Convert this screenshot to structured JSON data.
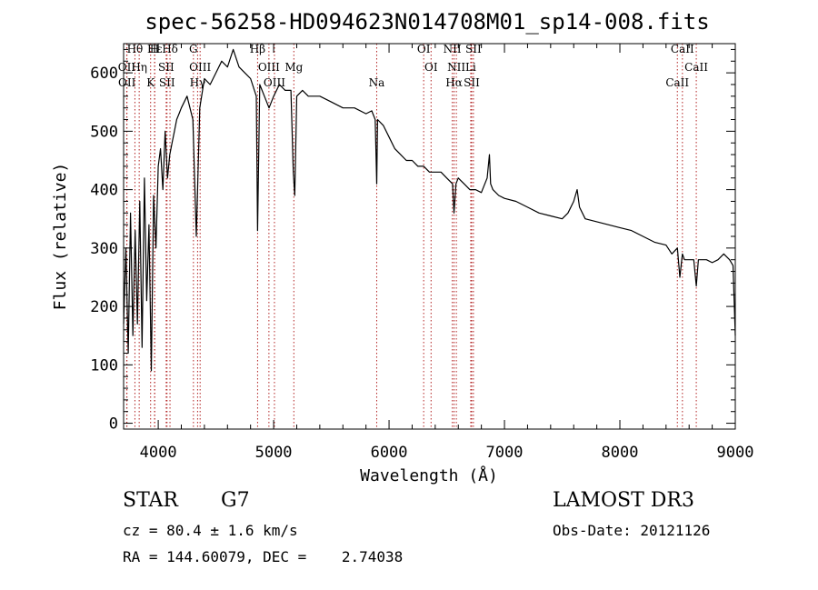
{
  "chart_data": {
    "type": "line",
    "title": "spec-56258-HD094623N014708M01_sp14-008.fits",
    "xlabel": "Wavelength (Å)",
    "ylabel": "Flux (relative)",
    "xlim": [
      3700,
      9000
    ],
    "ylim": [
      -10,
      650
    ],
    "xticks": [
      4000,
      5000,
      6000,
      7000,
      8000,
      9000
    ],
    "yticks": [
      0,
      100,
      200,
      300,
      400,
      500,
      600
    ],
    "grid": false,
    "series": [
      {
        "name": "flux",
        "x": [
          3700,
          3720,
          3740,
          3760,
          3780,
          3800,
          3820,
          3840,
          3860,
          3880,
          3900,
          3920,
          3940,
          3960,
          3980,
          4000,
          4020,
          4040,
          4060,
          4080,
          4100,
          4120,
          4140,
          4160,
          4180,
          4200,
          4250,
          4300,
          4330,
          4360,
          4400,
          4450,
          4500,
          4550,
          4600,
          4650,
          4700,
          4750,
          4800,
          4850,
          4861,
          4880,
          4920,
          4960,
          5000,
          5050,
          5100,
          5150,
          5170,
          5183,
          5200,
          5250,
          5300,
          5400,
          5500,
          5600,
          5700,
          5800,
          5850,
          5880,
          5893,
          5900,
          5950,
          6000,
          6050,
          6100,
          6150,
          6200,
          6250,
          6300,
          6350,
          6400,
          6450,
          6500,
          6550,
          6563,
          6580,
          6600,
          6650,
          6700,
          6750,
          6800,
          6850,
          6870,
          6880,
          6900,
          6950,
          7000,
          7100,
          7200,
          7300,
          7400,
          7500,
          7550,
          7600,
          7630,
          7650,
          7700,
          7800,
          7900,
          8000,
          8100,
          8200,
          8300,
          8400,
          8450,
          8498,
          8520,
          8542,
          8560,
          8600,
          8640,
          8662,
          8680,
          8750,
          8800,
          8850,
          8900,
          8950,
          8980,
          9000
        ],
        "values": [
          170,
          300,
          120,
          360,
          150,
          330,
          170,
          380,
          130,
          420,
          210,
          340,
          90,
          390,
          300,
          440,
          470,
          400,
          500,
          420,
          460,
          480,
          500,
          520,
          530,
          540,
          560,
          520,
          320,
          540,
          590,
          580,
          600,
          620,
          610,
          640,
          610,
          600,
          590,
          560,
          330,
          580,
          560,
          540,
          560,
          580,
          570,
          570,
          430,
          390,
          560,
          570,
          560,
          560,
          550,
          540,
          540,
          530,
          535,
          520,
          410,
          520,
          510,
          490,
          470,
          460,
          450,
          450,
          440,
          440,
          430,
          430,
          430,
          420,
          410,
          360,
          410,
          420,
          410,
          400,
          400,
          395,
          420,
          460,
          410,
          400,
          390,
          385,
          380,
          370,
          360,
          355,
          350,
          360,
          380,
          400,
          370,
          350,
          345,
          340,
          335,
          330,
          320,
          310,
          305,
          290,
          300,
          250,
          290,
          280,
          280,
          280,
          235,
          280,
          280,
          275,
          280,
          290,
          280,
          270,
          150
        ],
        "color": "#000000"
      }
    ],
    "lines": [
      {
        "label": "Hθ",
        "x": 3798
      },
      {
        "label": "OII",
        "x": 3727
      },
      {
        "label": "OII",
        "x": 3729
      },
      {
        "label": "Hε",
        "x": 3970
      },
      {
        "label": "Hη",
        "x": 3835
      },
      {
        "label": "K",
        "x": 3934
      },
      {
        "label": "H",
        "x": 3968
      },
      {
        "label": "SII",
        "x": 4069
      },
      {
        "label": "SII",
        "x": 4076
      },
      {
        "label": "Hδ",
        "x": 4102
      },
      {
        "label": "OIII",
        "x": 4363
      },
      {
        "label": "Hγ",
        "x": 4341
      },
      {
        "label": "G",
        "x": 4305
      },
      {
        "label": "OIII",
        "x": 4959
      },
      {
        "label": "OIII",
        "x": 5007
      },
      {
        "label": "Hβ",
        "x": 4861
      },
      {
        "label": "Mg",
        "x": 5175
      },
      {
        "label": "Na",
        "x": 5893
      },
      {
        "label": "OI",
        "x": 6300
      },
      {
        "label": "OI",
        "x": 6364
      },
      {
        "label": "Hα",
        "x": 6563
      },
      {
        "label": "NII",
        "x": 6548
      },
      {
        "label": "NII",
        "x": 6583
      },
      {
        "label": "SII",
        "x": 6716
      },
      {
        "label": "SII",
        "x": 6731
      },
      {
        "label": "Li",
        "x": 6708
      },
      {
        "label": "CaII",
        "x": 8498
      },
      {
        "label": "CaII",
        "x": 8542
      },
      {
        "label": "CaII",
        "x": 8662
      }
    ]
  },
  "info": {
    "class": "STAR",
    "subclass": "G7",
    "survey": "LAMOST DR3",
    "cz": "cz = 80.4 ± 1.6 km/s",
    "obs_date": "Obs-Date: 20121126",
    "coords": "RA = 144.60079, DEC =    2.74038"
  }
}
